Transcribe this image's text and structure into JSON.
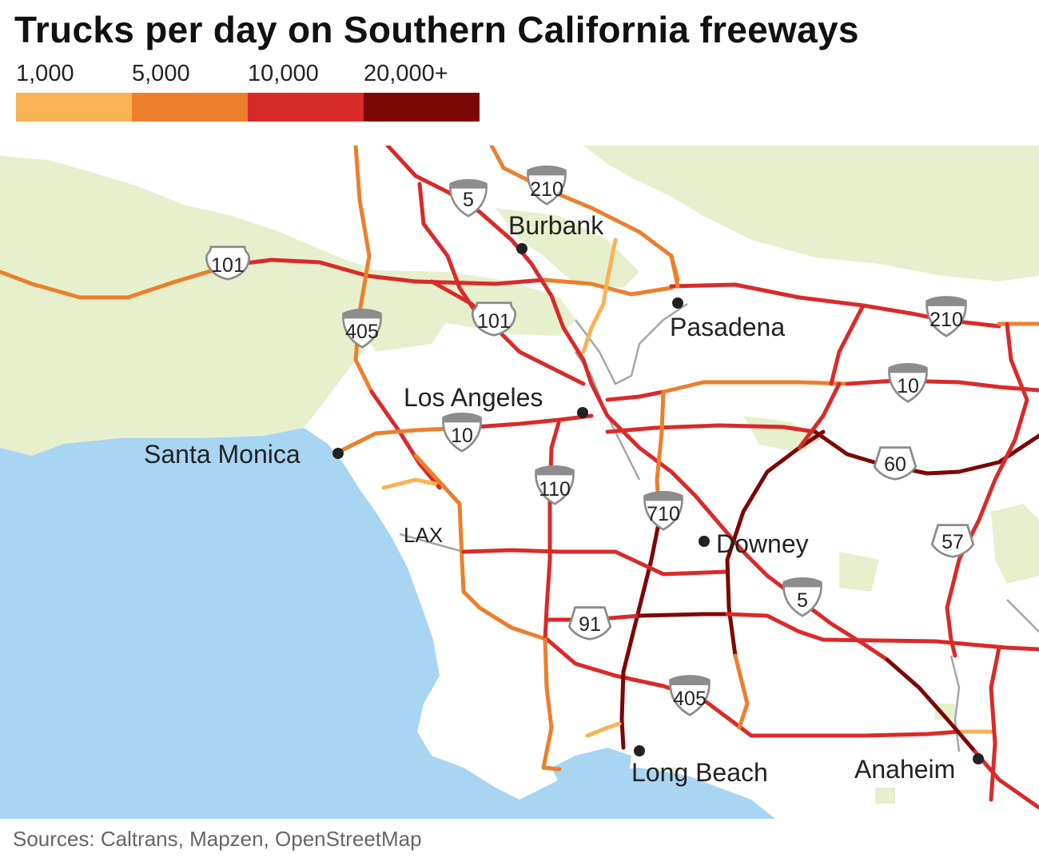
{
  "title": "Trucks per day on Southern California freeways",
  "legend": {
    "items": [
      {
        "label": "1,000",
        "color": "#f9b255"
      },
      {
        "label": "5,000",
        "color": "#ec7f2c"
      },
      {
        "label": "10,000",
        "color": "#d92a2a"
      },
      {
        "label": "20,000+",
        "color": "#7c0707"
      }
    ]
  },
  "cities": {
    "burbank": "Burbank",
    "pasadena": "Pasadena",
    "los_angeles": "Los Angeles",
    "santa_monica": "Santa Monica",
    "downey": "Downey",
    "long_beach": "Long Beach",
    "anaheim": "Anaheim",
    "lax": "LAX"
  },
  "shields": {
    "i5_north": "5",
    "i210_north": "210",
    "us101_west": "101",
    "i405_north": "405",
    "us101_central": "101",
    "i210_east": "210",
    "i10_east": "10",
    "i10_west": "10",
    "i110": "110",
    "i710": "710",
    "sr60": "60",
    "sr57": "57",
    "i5_south": "5",
    "sr91": "91",
    "i405_south": "405"
  },
  "colors": {
    "ocean": "#a8d5f2",
    "park": "#e6f0cc",
    "road_minor": "#a6a6a6"
  },
  "source": "Sources: Caltrans, Mapzen, OpenStreetMap"
}
